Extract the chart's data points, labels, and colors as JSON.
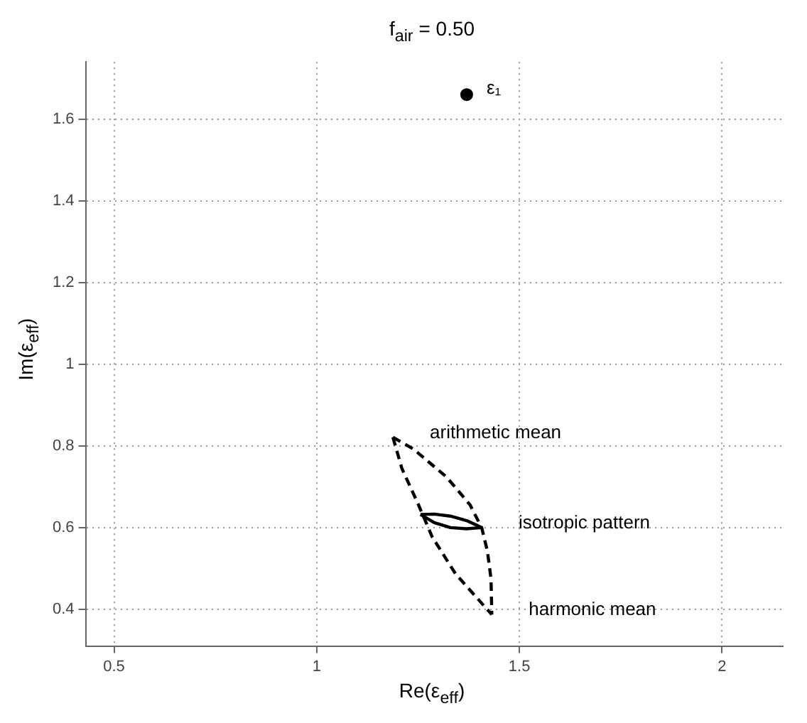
{
  "chart_data": {
    "type": "line",
    "title": "f$_{air}$ = 0.50",
    "xlabel": "Re(ε$_{eff}$)",
    "ylabel": "Im(ε$_{eff}$)",
    "xlim": [
      0.43,
      2.15
    ],
    "ylim": [
      0.31,
      1.74
    ],
    "xticks": [
      0.5,
      1,
      1.5,
      2
    ],
    "yticks": [
      0.4,
      0.6,
      0.8,
      1,
      1.2,
      1.4,
      1.6
    ],
    "grid": true,
    "legend": false,
    "series": [
      {
        "type": "scatter",
        "name": "ε₁",
        "color": "#000000",
        "marker": "circle",
        "x": [
          1.37
        ],
        "values": [
          1.66
        ]
      },
      {
        "color": "#000000",
        "line_style": "dashed",
        "x": [
          1.188,
          1.239,
          1.32,
          1.378,
          1.407,
          1.421,
          1.43,
          1.432
        ],
        "values": [
          0.821,
          0.792,
          0.724,
          0.656,
          0.6,
          0.543,
          0.475,
          0.387
        ]
      },
      {
        "color": "#000000",
        "line_style": "dashed",
        "x": [
          1.188,
          1.21,
          1.251,
          1.285,
          1.343,
          1.432
        ],
        "values": [
          0.821,
          0.745,
          0.656,
          0.577,
          0.486,
          0.387
        ]
      },
      {
        "color": "#000000",
        "line_style": "solid",
        "x": [
          1.256,
          1.29,
          1.33,
          1.37,
          1.407
        ],
        "values": [
          0.632,
          0.633,
          0.628,
          0.617,
          0.6
        ]
      },
      {
        "color": "#000000",
        "line_style": "solid",
        "x": [
          1.256,
          1.29,
          1.33,
          1.37,
          1.407
        ],
        "values": [
          0.632,
          0.612,
          0.6,
          0.597,
          0.6
        ]
      }
    ],
    "annotations": [
      {
        "text": "arithmetic mean",
        "x": 1.188,
        "y": 0.821
      },
      {
        "text": "isotropic pattern",
        "x": 1.407,
        "y": 0.6
      },
      {
        "text": "harmonic mean",
        "x": 1.432,
        "y": 0.387
      }
    ]
  }
}
